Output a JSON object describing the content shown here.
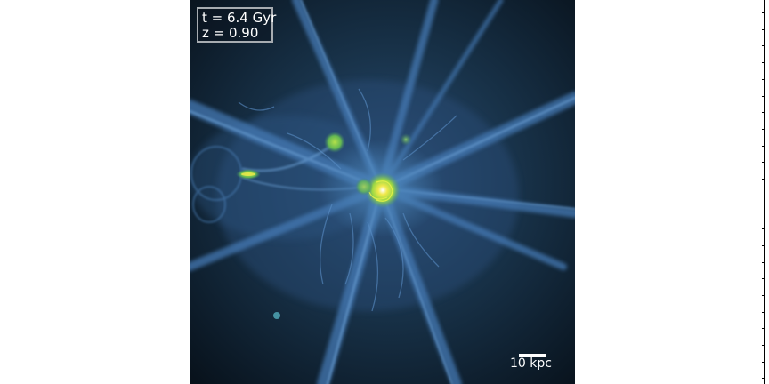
{
  "panel": {
    "time_label": "t = 6.4 Gyr",
    "redshift_label": "z = 0.90",
    "scale_label": "10 kpc"
  },
  "colors": {
    "background": "#0a141f",
    "filament": "#3c6ea8",
    "filament_bright": "#5f93c9",
    "galaxy_core": "#e9f04a",
    "galaxy_halo": "#79c84b"
  }
}
